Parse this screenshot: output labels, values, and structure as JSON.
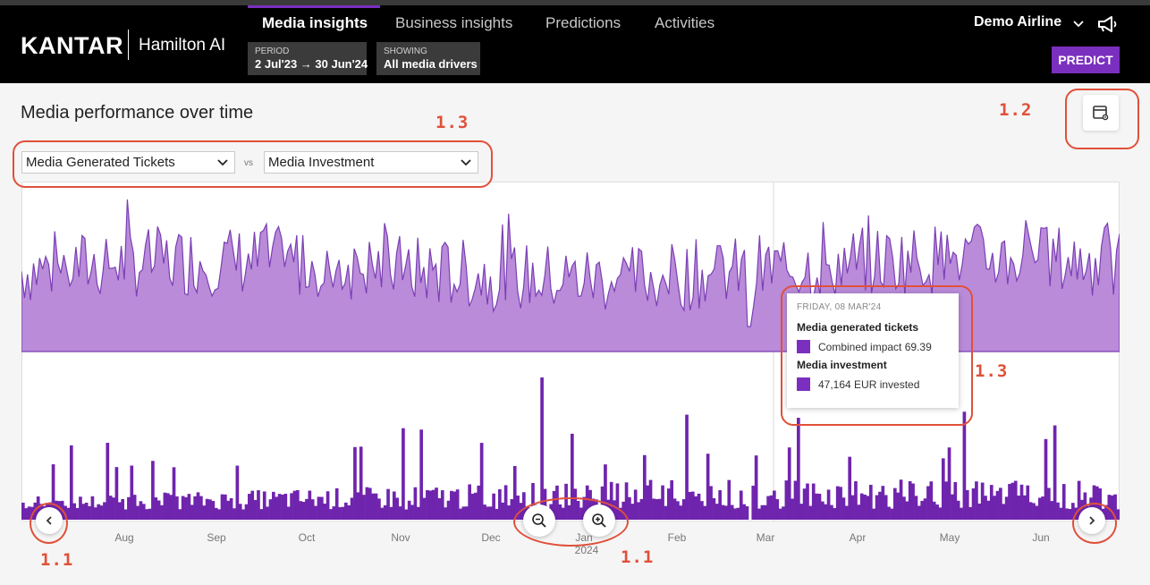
{
  "header": {
    "logo": "KANTAR",
    "logo_sub": "Hamilton AI",
    "tabs": [
      {
        "label": "Media insights",
        "active": true
      },
      {
        "label": "Business insights",
        "active": false
      },
      {
        "label": "Predictions",
        "active": false
      },
      {
        "label": "Activities",
        "active": false
      }
    ],
    "period": {
      "label": "PERIOD",
      "value": "2 Jul'23 → 30 Jun'24"
    },
    "showing": {
      "label": "SHOWING",
      "value": "All media drivers"
    },
    "account": "Demo Airline",
    "predict_label": "PREDICT",
    "accent_color": "#7b2fbf"
  },
  "main": {
    "title": "Media performance over time",
    "select_left": "Media Generated Tickets",
    "vs": "vs",
    "select_right": "Media Investment"
  },
  "chart_data": {
    "type": "area",
    "title": "Media performance over time",
    "series": [
      {
        "name": "Media generated tickets",
        "kind": "area",
        "color": "#b98bd9",
        "relative_range": [
          0.55,
          0.98
        ]
      },
      {
        "name": "Media investment",
        "kind": "bar",
        "color": "#6f24ad",
        "relative_range": [
          0.05,
          0.82
        ]
      }
    ],
    "x_ticks": [
      "Aug",
      "Sep",
      "Oct",
      "Nov",
      "Dec",
      "Jan",
      "Feb",
      "Mar",
      "Apr",
      "May",
      "Jun"
    ],
    "year_label": "2024",
    "highlight_date": "FRIDAY, 08 MAR'24"
  },
  "tooltip": {
    "date": "FRIDAY, 08 MAR'24",
    "tickets_heading": "Media generated tickets",
    "tickets_value": "Combined impact 69.39",
    "investment_heading": "Media investment",
    "investment_value": "47,164 EUR invested"
  },
  "annotations": {
    "a11_left": "1.1",
    "a11_center": "1.1",
    "a12": "1.2",
    "a13_top": "1.3",
    "a13_tooltip": "1.3",
    "color": "#e0503a"
  },
  "icons": [
    "chevron-down-icon",
    "megaphone-icon",
    "table-settings-icon",
    "chevron-left-icon",
    "chevron-right-icon",
    "zoom-out-icon",
    "zoom-in-icon"
  ]
}
